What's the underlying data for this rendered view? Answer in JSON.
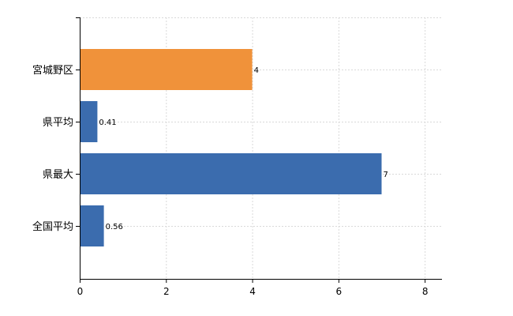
{
  "chart_data": {
    "type": "bar",
    "orientation": "horizontal",
    "categories": [
      "宮城野区",
      "県平均",
      "県最大",
      "全国平均"
    ],
    "values": [
      4,
      0.41,
      7,
      0.56
    ],
    "data_labels": [
      "4",
      "0.41",
      "7",
      "0.56"
    ],
    "bar_colors": [
      "#F0923A",
      "#3B6CAE",
      "#3B6CAE",
      "#3B6CAE"
    ],
    "xlim": [
      0,
      8.4
    ],
    "x_ticks": [
      0,
      2,
      4,
      6,
      8
    ],
    "grid": true,
    "grid_style": "dashed",
    "grid_color": "#d9d9d9",
    "title": "",
    "xlabel": "",
    "ylabel": ""
  }
}
